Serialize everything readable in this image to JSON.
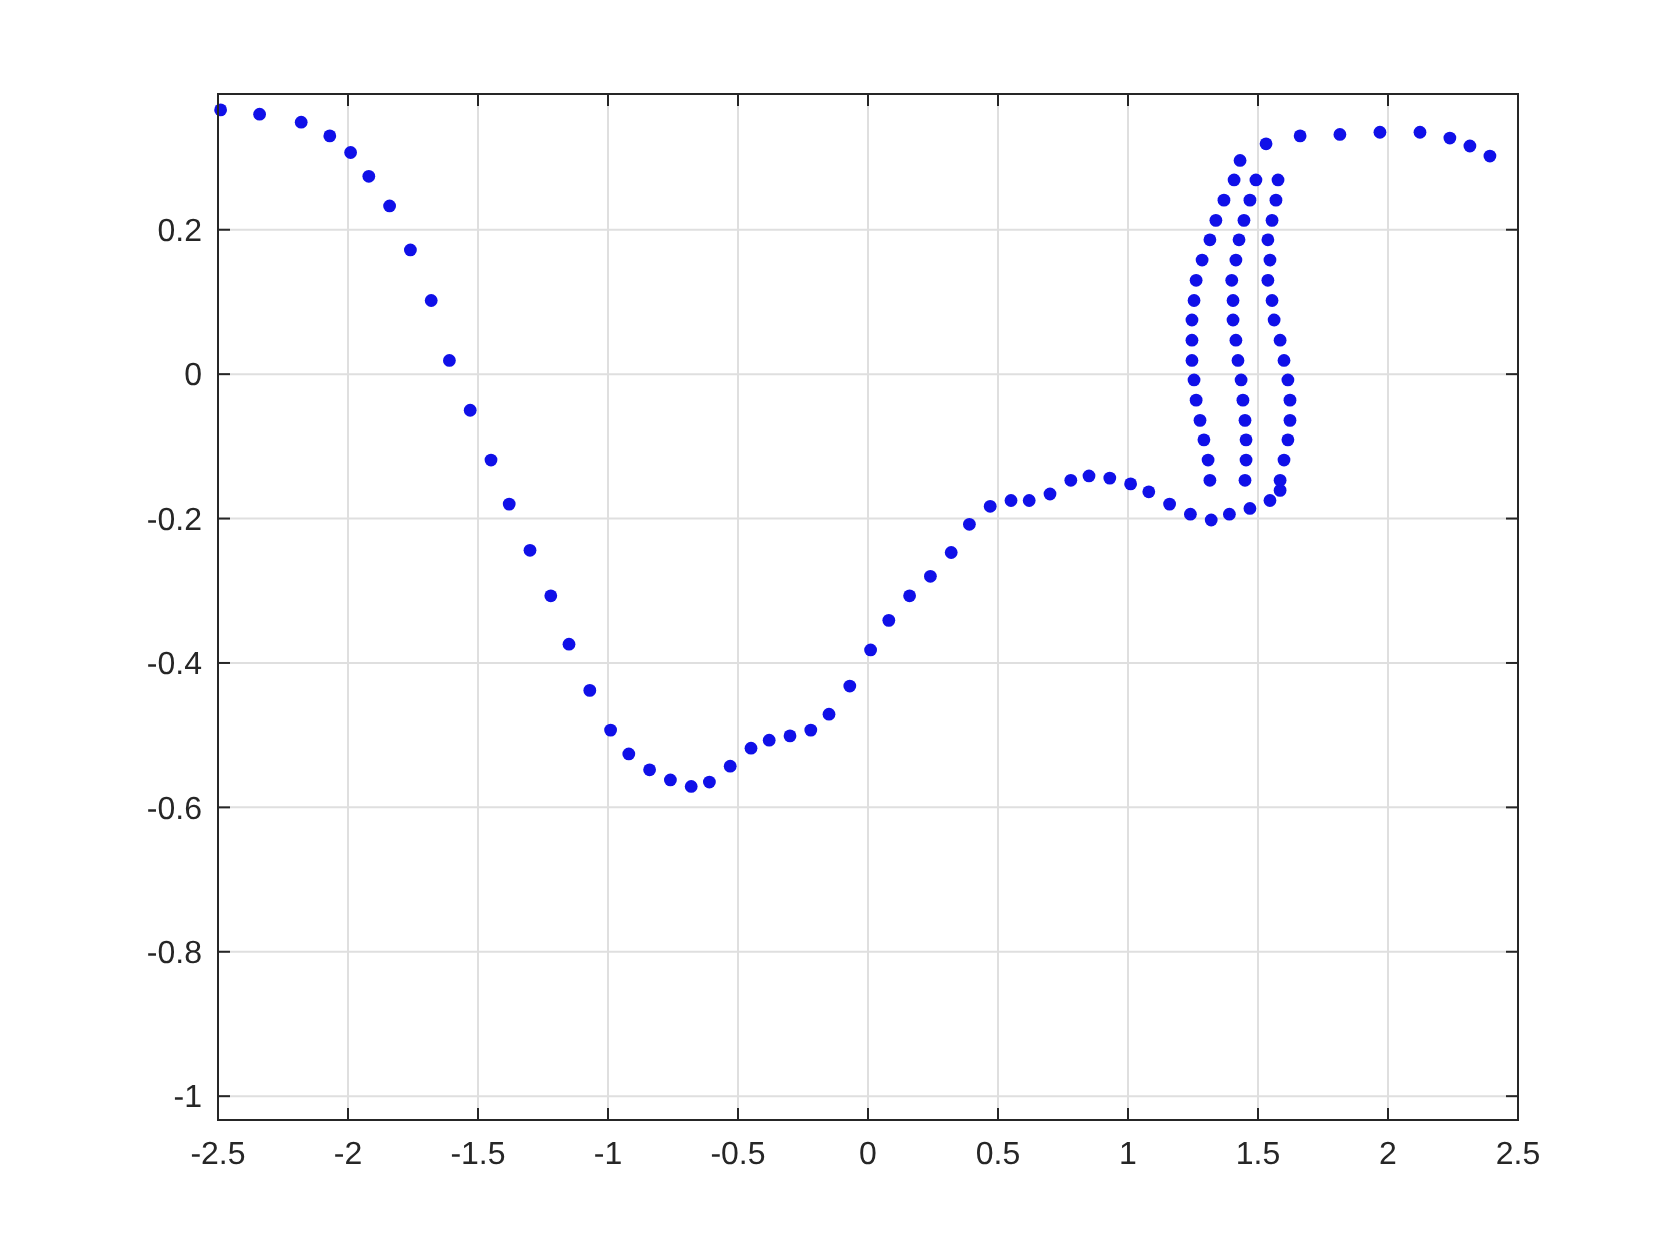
{
  "chart_data": {
    "type": "scatter",
    "marker": "circle",
    "grid": true,
    "xlim": [
      -2.5,
      2.5
    ],
    "ylim": [
      -1.033,
      0.388
    ],
    "xticks": [
      -2.5,
      -2,
      -1.5,
      -1,
      -0.5,
      0,
      0.5,
      1,
      1.5,
      2,
      2.5
    ],
    "yticks": [
      -1,
      -0.8,
      -0.6,
      -0.4,
      -0.2,
      0,
      0.2
    ],
    "series": [
      {
        "color": "#1010e8",
        "x": [
          -2.49,
          -2.34,
          -2.18,
          -2.07,
          -1.99,
          -1.92,
          -1.84,
          -1.76,
          -1.68,
          -1.61,
          -1.53,
          -1.45,
          -1.38,
          -1.3,
          -1.22,
          -1.15,
          -1.07,
          -0.99,
          -0.92,
          -0.84,
          -0.76,
          -0.68,
          -0.61,
          -0.53,
          -0.45,
          -0.38,
          -0.3,
          -0.22,
          -0.15,
          -0.07,
          0.01,
          0.08,
          0.16,
          0.24,
          0.32,
          0.39,
          0.47,
          0.55,
          0.62,
          0.7,
          0.78,
          0.85,
          0.93,
          1.01,
          1.08,
          1.16,
          1.24,
          1.32,
          1.39,
          1.469,
          1.546,
          1.585,
          1.408,
          1.492,
          1.577,
          1.369,
          1.469,
          1.569,
          1.338,
          1.446,
          1.554,
          1.315,
          1.427,
          1.538,
          1.285,
          1.415,
          1.546,
          1.262,
          1.399,
          1.538,
          1.254,
          1.404,
          1.554,
          1.246,
          1.404,
          1.562,
          1.246,
          1.415,
          1.585,
          1.246,
          1.423,
          1.6,
          1.254,
          1.435,
          1.615,
          1.262,
          1.442,
          1.623,
          1.277,
          1.45,
          1.623,
          1.292,
          1.454,
          1.615,
          1.308,
          1.454,
          1.6,
          1.315,
          1.45,
          1.585,
          1.431,
          1.531,
          1.662,
          1.815,
          1.969,
          2.123,
          2.238,
          2.315,
          2.392
        ],
        "values": [
          0.366,
          0.36,
          0.349,
          0.33,
          0.307,
          0.274,
          0.233,
          0.172,
          0.102,
          0.019,
          -0.05,
          -0.119,
          -0.18,
          -0.244,
          -0.307,
          -0.374,
          -0.438,
          -0.493,
          -0.526,
          -0.548,
          -0.562,
          -0.571,
          -0.565,
          -0.543,
          -0.518,
          -0.507,
          -0.501,
          -0.493,
          -0.471,
          -0.432,
          -0.382,
          -0.341,
          -0.307,
          -0.28,
          -0.247,
          -0.208,
          -0.183,
          -0.175,
          -0.175,
          -0.166,
          -0.147,
          -0.141,
          -0.144,
          -0.152,
          -0.163,
          -0.18,
          -0.194,
          -0.202,
          -0.194,
          -0.186,
          -0.175,
          -0.161,
          0.269,
          0.269,
          0.269,
          0.241,
          0.241,
          0.241,
          0.213,
          0.213,
          0.213,
          0.186,
          0.186,
          0.186,
          0.158,
          0.158,
          0.158,
          0.13,
          0.13,
          0.13,
          0.102,
          0.102,
          0.102,
          0.075,
          0.075,
          0.075,
          0.047,
          0.047,
          0.047,
          0.019,
          0.019,
          0.019,
          -0.008,
          -0.008,
          -0.008,
          -0.036,
          -0.036,
          -0.036,
          -0.064,
          -0.064,
          -0.064,
          -0.091,
          -0.091,
          -0.091,
          -0.119,
          -0.119,
          -0.119,
          -0.147,
          -0.147,
          -0.147,
          0.296,
          0.319,
          0.33,
          0.332,
          0.335,
          0.335,
          0.327,
          0.316,
          0.302
        ]
      }
    ]
  }
}
